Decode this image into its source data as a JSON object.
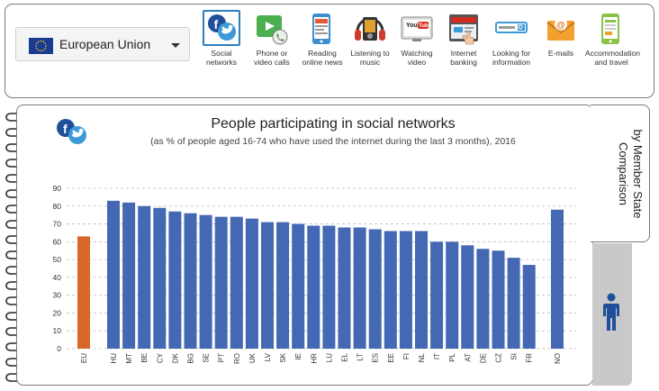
{
  "selector": {
    "label": "European Union",
    "flag_icon": "eu-flag-icon"
  },
  "activities": [
    {
      "id": "social",
      "label": "Social\nnetworks",
      "icon": "social-networks-icon",
      "selected": true
    },
    {
      "id": "phone",
      "label": "Phone or\nvideo calls",
      "icon": "video-call-icon",
      "selected": false
    },
    {
      "id": "news",
      "label": "Reading\nonline news",
      "icon": "online-news-icon",
      "selected": false
    },
    {
      "id": "music",
      "label": "Listening to\nmusic",
      "icon": "music-icon",
      "selected": false
    },
    {
      "id": "video",
      "label": "Watching\nvideo",
      "icon": "youtube-video-icon",
      "selected": false
    },
    {
      "id": "banking",
      "label": "Internet\nbanking",
      "icon": "internet-banking-icon",
      "selected": false
    },
    {
      "id": "search",
      "label": "Looking for\ninformation",
      "icon": "search-information-icon",
      "selected": false
    },
    {
      "id": "email",
      "label": "E-mails",
      "icon": "email-icon",
      "selected": false
    },
    {
      "id": "travel",
      "label": "Accommodation\nand travel",
      "icon": "travel-booking-icon",
      "selected": false
    }
  ],
  "side_tab": {
    "label": "Comparison by Member State"
  },
  "chart_data": {
    "type": "bar",
    "title": "People participating in social networks",
    "subtitle": "(as % of people aged 16-74 who have used the internet during the last 3 months), 2016",
    "ylim": [
      0,
      90
    ],
    "yticks": [
      0,
      10,
      20,
      30,
      40,
      50,
      60,
      70,
      80,
      90
    ],
    "grid": true,
    "categories": [
      "EU",
      "HU",
      "MT",
      "BE",
      "CY",
      "DK",
      "BG",
      "SE",
      "PT",
      "RO",
      "UK",
      "LV",
      "SK",
      "IE",
      "HR",
      "LU",
      "EL",
      "LT",
      "ES",
      "EE",
      "FI",
      "NL",
      "IT",
      "PL",
      "AT",
      "DE",
      "CZ",
      "SI",
      "FR",
      "NO"
    ],
    "values": [
      63,
      83,
      82,
      80,
      79,
      77,
      76,
      75,
      74,
      74,
      73,
      71,
      71,
      70,
      69,
      69,
      68,
      68,
      67,
      66,
      66,
      66,
      60,
      60,
      58,
      56,
      55,
      51,
      47,
      78
    ],
    "colors": {
      "EU": "#d9662b",
      "default": "#4468b3"
    }
  }
}
